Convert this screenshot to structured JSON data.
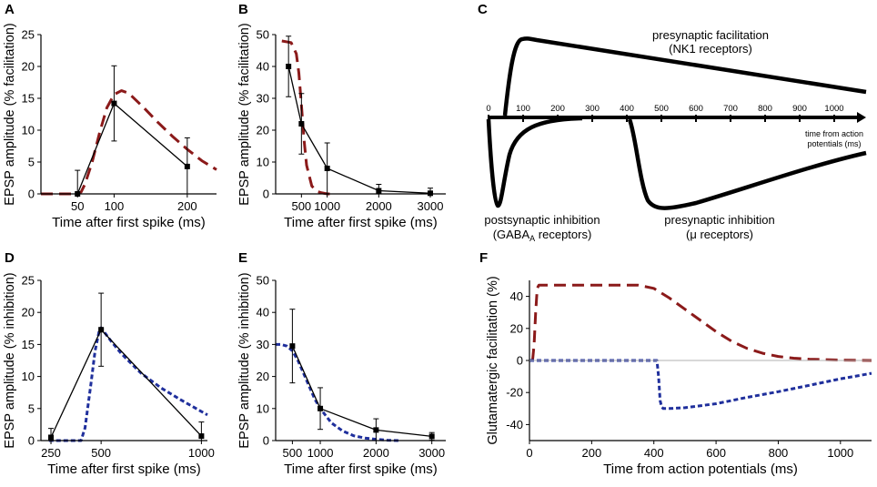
{
  "colors": {
    "axis": "#000000",
    "red": "#8b1a1a",
    "blue": "#1f2f9c",
    "zero_line": "#b0b0b0"
  },
  "chart_data": [
    {
      "panel": "A",
      "type": "line",
      "xlabel": "Time after first spike (ms)",
      "ylabel": "EPSP amplitude (% facilitation)",
      "xlim": [
        0,
        240
      ],
      "ylim": [
        0,
        25
      ],
      "xticks": [
        50,
        100,
        200
      ],
      "yticks": [
        0,
        5,
        10,
        15,
        20,
        25
      ],
      "data_points": [
        {
          "x": 50,
          "y": 0,
          "err": 3.7
        },
        {
          "x": 100,
          "y": 14.2,
          "err": 5.9
        },
        {
          "x": 200,
          "y": 4.3,
          "err": 4.5
        }
      ],
      "model_curve": {
        "style": "dashed",
        "color": "red",
        "x": [
          0,
          50,
          55,
          60,
          70,
          80,
          90,
          100,
          110,
          120,
          140,
          160,
          180,
          200,
          220,
          240
        ],
        "y": [
          0,
          0,
          0.3,
          1.5,
          5,
          9.5,
          13.5,
          15.6,
          16.2,
          15.8,
          13.6,
          11.2,
          9.0,
          7.0,
          5.2,
          3.8
        ]
      }
    },
    {
      "panel": "B",
      "type": "line",
      "xlabel": "Time after first spike (ms)",
      "ylabel": "EPSP amplitude (% facilitation)",
      "xlim": [
        0,
        3300
      ],
      "ylim": [
        0,
        50
      ],
      "xticks": [
        500,
        1000,
        2000,
        3000
      ],
      "yticks": [
        0,
        10,
        20,
        30,
        40,
        50
      ],
      "data_points": [
        {
          "x": 250,
          "y": 40,
          "err": 9.5
        },
        {
          "x": 500,
          "y": 22,
          "err": 9.5
        },
        {
          "x": 1000,
          "y": 8,
          "err": 8
        },
        {
          "x": 2000,
          "y": 1,
          "err": 2
        },
        {
          "x": 3000,
          "y": 0.2,
          "err": 1.6
        }
      ],
      "model_curve": {
        "style": "dashed",
        "color": "red",
        "x": [
          120,
          300,
          400,
          450,
          500,
          550,
          600,
          700,
          800,
          900,
          1000,
          1100
        ],
        "y": [
          48,
          47.5,
          44,
          38,
          28,
          17,
          9,
          2.5,
          0.8,
          0.3,
          0,
          0
        ]
      }
    },
    {
      "panel": "D",
      "type": "line",
      "xlabel": "Time after first spike (ms)",
      "ylabel": "EPSP amplitude (% inhibition)",
      "xlim": [
        200,
        1030
      ],
      "ylim": [
        0,
        25
      ],
      "xticks": [
        250,
        500,
        1000
      ],
      "yticks": [
        0,
        5,
        10,
        15,
        20,
        25
      ],
      "data_points": [
        {
          "x": 250,
          "y": 0.5,
          "err": 1.4
        },
        {
          "x": 500,
          "y": 17.3,
          "err": 5.7
        },
        {
          "x": 1000,
          "y": 0.7,
          "err": 2.2
        }
      ],
      "model_curve": {
        "style": "dotted",
        "color": "blue",
        "x": [
          240,
          400,
          420,
          450,
          470,
          490,
          500,
          550,
          600,
          700,
          800,
          900,
          1030
        ],
        "y": [
          0,
          0,
          2,
          9,
          14,
          17,
          17.6,
          15.5,
          13.6,
          10.5,
          8.2,
          6.3,
          4.0
        ]
      }
    },
    {
      "panel": "E",
      "type": "line",
      "xlabel": "Time after first spike (ms)",
      "ylabel": "EPSP amplitude (% inhibition)",
      "xlim": [
        200,
        3250
      ],
      "ylim": [
        0,
        50
      ],
      "xticks": [
        500,
        1000,
        2000,
        3000
      ],
      "yticks": [
        0,
        10,
        20,
        30,
        40,
        50
      ],
      "data_points": [
        {
          "x": 500,
          "y": 29.5,
          "err": 11.5
        },
        {
          "x": 1000,
          "y": 10,
          "err": 6.5
        },
        {
          "x": 2000,
          "y": 3.3,
          "err": 3.5
        },
        {
          "x": 3000,
          "y": 1.3,
          "err": 1.2
        }
      ],
      "model_curve": {
        "style": "dotted",
        "color": "blue",
        "x": [
          200,
          300,
          400,
          500,
          600,
          700,
          800,
          900,
          1000,
          1200,
          1400,
          1600,
          1800,
          2000,
          2200,
          2400
        ],
        "y": [
          30,
          30,
          29.5,
          28,
          25,
          21,
          17,
          13,
          10,
          5.5,
          3,
          1.5,
          0.8,
          0.4,
          0.1,
          0
        ]
      }
    },
    {
      "panel": "F",
      "type": "line",
      "xlabel": "Time from action potentials (ms)",
      "ylabel": "Glutamatergic facilitation (%)",
      "xlim": [
        0,
        1100
      ],
      "ylim": [
        -50,
        50
      ],
      "xticks": [
        0,
        200,
        400,
        600,
        800,
        1000
      ],
      "yticks": [
        -40,
        -20,
        0,
        20,
        40
      ],
      "series": [
        {
          "name": "facilitation",
          "style": "dashed",
          "color": "red",
          "x": [
            10,
            15,
            20,
            25,
            30,
            100,
            200,
            300,
            350,
            400,
            450,
            500,
            550,
            600,
            650,
            700,
            750,
            800,
            850,
            900,
            1000,
            1100
          ],
          "y": [
            0,
            10,
            30,
            45,
            47,
            47,
            47,
            47,
            47,
            45,
            39,
            32,
            25,
            18,
            12,
            7.5,
            4.5,
            2.5,
            1.4,
            0.8,
            0.2,
            0
          ]
        },
        {
          "name": "inhibition",
          "style": "dotted",
          "color": "blue",
          "x": [
            0,
            400,
            410,
            415,
            420,
            425,
            430,
            450,
            500,
            600,
            700,
            800,
            900,
            1000,
            1100
          ],
          "y": [
            0,
            0,
            0,
            -10,
            -25,
            -29,
            -30,
            -30,
            -29.5,
            -27,
            -23,
            -19.5,
            -15.5,
            -11.5,
            -8
          ]
        }
      ]
    }
  ],
  "panel_c": {
    "axis_label_line1": "time from action",
    "axis_label_line2": "potentials (ms)",
    "ticks": [
      "0",
      "100",
      "200",
      "300",
      "400",
      "500",
      "600",
      "700",
      "800",
      "900",
      "1000"
    ],
    "facilitation_label_1": "presynaptic facilitation",
    "facilitation_label_2": "(NK1 receptors)",
    "postsyn_label_1": "postsynaptic inhibition",
    "postsyn_label_2_main": "(GABA",
    "postsyn_label_2_sub": "A",
    "postsyn_label_2_tail": " receptors)",
    "presyn_inh_label_1": "presynaptic inhibition",
    "presyn_inh_label_2": "(μ receptors)"
  }
}
